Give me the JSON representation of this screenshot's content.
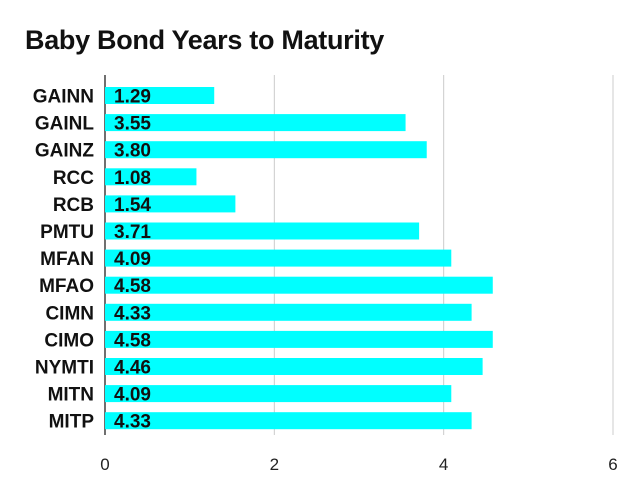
{
  "chart_data": {
    "type": "bar",
    "orientation": "horizontal",
    "title": "Baby Bond Years to Maturity",
    "xlabel": "",
    "ylabel": "",
    "xlim": [
      0,
      6
    ],
    "x_ticks": [
      "0",
      "2",
      "4",
      "6"
    ],
    "grid": true,
    "bar_color": "#00FFFF",
    "categories": [
      "GAINN",
      "GAINL",
      "GAINZ",
      "RCC",
      "RCB",
      "PMTU",
      "MFAN",
      "MFAO",
      "CIMN",
      "CIMO",
      "NYMTI",
      "MITN",
      "MITP"
    ],
    "values": [
      1.29,
      3.55,
      3.8,
      1.08,
      1.54,
      3.71,
      4.09,
      4.58,
      4.33,
      4.58,
      4.46,
      4.09,
      4.33
    ],
    "value_labels": [
      "1.29",
      "3.55",
      "3.80",
      "1.08",
      "1.54",
      "3.71",
      "4.09",
      "4.58",
      "4.33",
      "4.58",
      "4.46",
      "4.09",
      "4.33"
    ]
  }
}
